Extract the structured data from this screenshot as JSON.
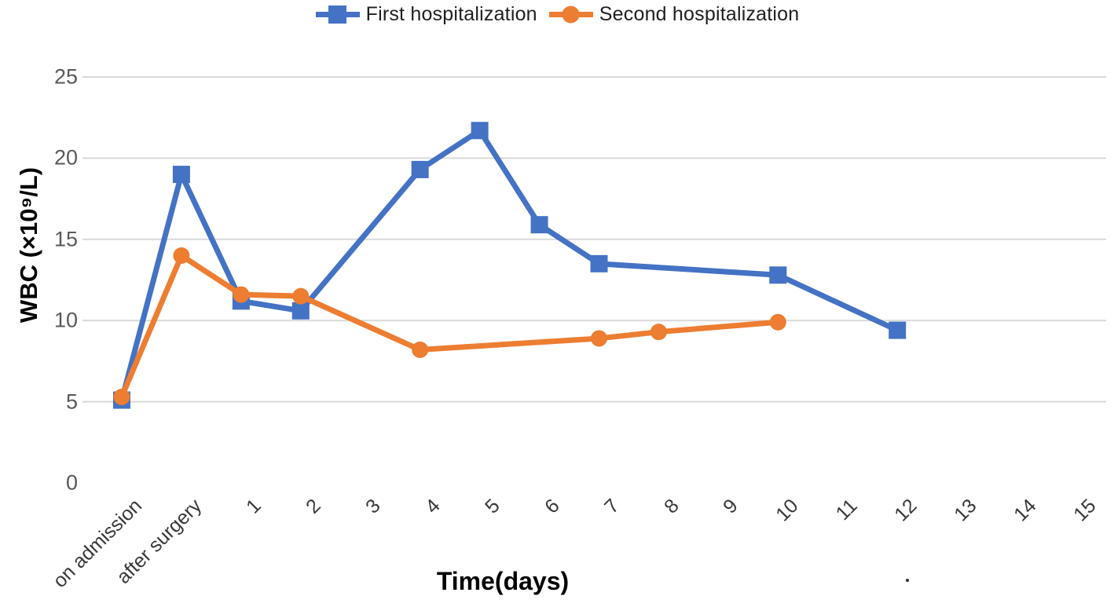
{
  "colors": {
    "first_series": "#4472C4",
    "second_series": "#ED7D31",
    "gridline": "#D9D9D9",
    "y_tick_text": "#595959",
    "x_tick_text": "#383838"
  },
  "chart_data": {
    "type": "line",
    "title": "",
    "xlabel": "Time(days)",
    "ylabel": "WBC (×10⁹/L)",
    "categories": [
      "on admission",
      "after surgery",
      "1",
      "2",
      "3",
      "4",
      "5",
      "6",
      "7",
      "8",
      "9",
      "10",
      "11",
      "12",
      "13",
      "14",
      "15"
    ],
    "series": [
      {
        "name": "First hospitalization",
        "color": "#4472C4",
        "marker": "square",
        "values": [
          5.1,
          19.0,
          11.2,
          10.6,
          null,
          19.3,
          21.7,
          15.9,
          13.5,
          null,
          null,
          12.8,
          null,
          9.4,
          null,
          null,
          null
        ]
      },
      {
        "name": "Second hospitalization",
        "color": "#ED7D31",
        "marker": "circle",
        "values": [
          5.3,
          14.0,
          11.6,
          11.5,
          null,
          8.2,
          null,
          null,
          8.9,
          9.3,
          null,
          9.9,
          null,
          null,
          null,
          null,
          null
        ]
      }
    ],
    "ylim": [
      0,
      25
    ],
    "y_ticks": [
      0,
      5,
      10,
      15,
      20,
      25
    ],
    "grid": "horizontal gridlines at 5,10,15,20,25 (none at 0)",
    "legend_position": "top center"
  }
}
